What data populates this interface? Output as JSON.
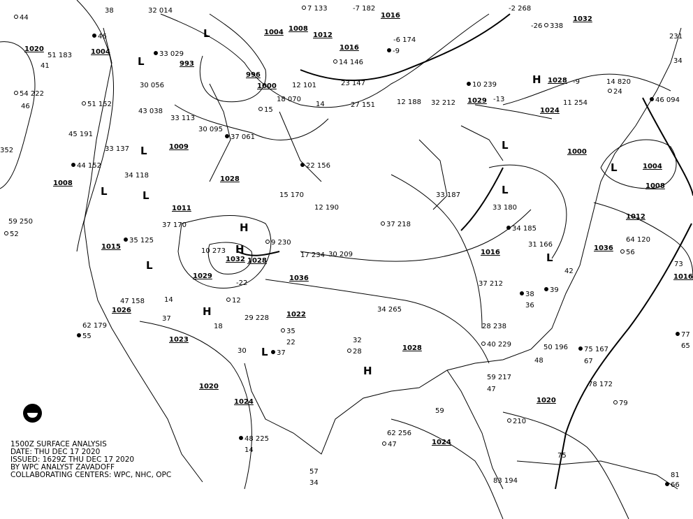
{
  "caption": {
    "title": "1500Z SURFACE ANALYSIS",
    "date": "DATE: THU DEC 17 2020",
    "issued": "ISSUED: 1629Z THU DEC 17 2020",
    "analyst": "BY WPC ANALYST ZAVADOFF",
    "centers": "COLLABORATING CENTERS: WPC, NHC, OPC"
  },
  "logo": "NOAA",
  "isobar_labels": [
    "1020",
    "1004",
    "993",
    "1004",
    "1008",
    "1012",
    "1016",
    "1016",
    "1000",
    "996",
    "1009",
    "1028",
    "1008",
    "1011",
    "1015",
    "1032",
    "1028",
    "1036",
    "1022",
    "1029",
    "1024",
    "1028",
    "1032",
    "1000",
    "1004",
    "1008",
    "1012",
    "1016",
    "1016",
    "1028",
    "1020",
    "1024",
    "1023",
    "1026",
    "1020",
    "1024",
    "1036",
    "1029"
  ],
  "highs": [
    "H",
    "H",
    "H",
    "H",
    "H"
  ],
  "lows": [
    "L",
    "L",
    "L",
    "L",
    "L",
    "L",
    "L",
    "L",
    "L",
    "L",
    "L"
  ],
  "stations": [
    "44",
    "38",
    "32 014",
    "46",
    "51 183",
    "41",
    "54 222",
    "46",
    "352",
    "33 029",
    "30 056",
    "43 038",
    "51 152",
    "45 191",
    "33 137",
    "44 152",
    "34 118",
    "59 250",
    "52",
    "33 113",
    "30 095",
    "37 061",
    "27 151",
    "23 147",
    "14 146",
    "12 188",
    "32 212",
    "10 239",
    "-13",
    "-26",
    "338",
    "-9",
    "11 254",
    "46 094",
    "231",
    "34",
    "7 133",
    "-7 182",
    "-6 174",
    "-9",
    "-2 268",
    "18 070",
    "15",
    "12 101",
    "14",
    "22 156",
    "15 170",
    "12 190",
    "37 218",
    "33 187",
    "33 180",
    "34 185",
    "31 166",
    "64 120",
    "56",
    "42",
    "73",
    "77",
    "65",
    "29 228",
    "35",
    "22",
    "30",
    "37",
    "34 265",
    "32",
    "28",
    "47 158",
    "62 179",
    "55",
    "37",
    "14",
    "12",
    "18",
    "37 170",
    "35 125",
    "30 209",
    "17 234",
    "9 230",
    "10 273",
    "-22",
    "48 225",
    "14",
    "62 256",
    "47",
    "83 194",
    "59",
    "75 167",
    "67",
    "78 172",
    "79",
    "75",
    "81",
    "66",
    "57",
    "34",
    "210",
    "50 196",
    "48",
    "39",
    "59 217",
    "47",
    "40 229",
    "28 238",
    "37 212",
    "38",
    "36",
    "14 820",
    "24"
  ]
}
